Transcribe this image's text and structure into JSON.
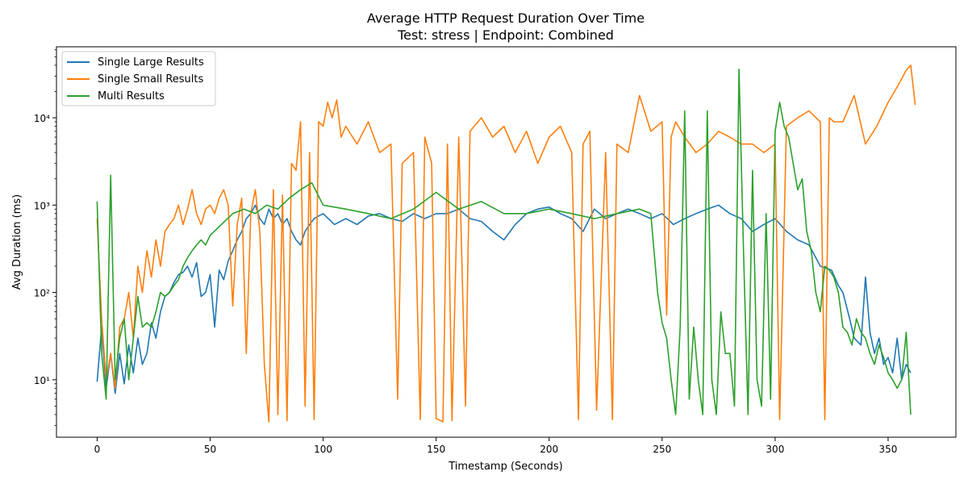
{
  "chart_data": {
    "type": "line",
    "title": "Average HTTP Request Duration Over Time",
    "subtitle": "Test: stress | Endpoint: Combined",
    "xlabel": "Timestamp (Seconds)",
    "ylabel": "Avg Duration (ms)",
    "xlim": [
      -18,
      380
    ],
    "ylim": [
      2.2,
      65000
    ],
    "yscale": "log",
    "grid": false,
    "legend_position": "top-left",
    "x_ticks": [
      0,
      50,
      100,
      150,
      200,
      250,
      300,
      350
    ],
    "x_tick_labels": [
      "0",
      "50",
      "100",
      "150",
      "200",
      "250",
      "300",
      "350"
    ],
    "y_ticks": [
      10,
      100,
      1000,
      10000
    ],
    "y_tick_labels": [
      "10¹",
      "10²",
      "10³",
      "10⁴"
    ],
    "series": [
      {
        "name": "Single Large Results",
        "color": "#1f77b4",
        "x": [
          0,
          2,
          4,
          6,
          8,
          10,
          12,
          14,
          16,
          18,
          20,
          22,
          24,
          26,
          28,
          30,
          32,
          34,
          36,
          38,
          40,
          42,
          44,
          46,
          48,
          50,
          52,
          54,
          56,
          58,
          60,
          62,
          64,
          66,
          68,
          70,
          72,
          74,
          76,
          78,
          80,
          82,
          84,
          86,
          88,
          90,
          92,
          94,
          96,
          98,
          100,
          105,
          110,
          115,
          120,
          125,
          130,
          135,
          140,
          145,
          150,
          155,
          160,
          165,
          170,
          175,
          180,
          185,
          190,
          195,
          200,
          205,
          210,
          215,
          220,
          225,
          230,
          235,
          240,
          245,
          250,
          255,
          260,
          265,
          270,
          275,
          280,
          285,
          290,
          295,
          300,
          305,
          310,
          315,
          320,
          325,
          328,
          330,
          333,
          335,
          338,
          340,
          342,
          344,
          346,
          348,
          350,
          352,
          354,
          356,
          358,
          360
        ],
        "values": [
          9.5,
          40,
          8,
          20,
          7,
          20,
          9,
          25,
          12,
          30,
          15,
          20,
          45,
          30,
          60,
          90,
          100,
          130,
          160,
          170,
          200,
          150,
          220,
          90,
          100,
          160,
          40,
          180,
          140,
          230,
          300,
          400,
          500,
          700,
          800,
          1000,
          700,
          600,
          900,
          700,
          800,
          600,
          700,
          500,
          400,
          350,
          500,
          600,
          700,
          750,
          800,
          600,
          700,
          600,
          750,
          800,
          700,
          650,
          800,
          700,
          800,
          800,
          900,
          700,
          650,
          500,
          400,
          600,
          800,
          900,
          950,
          800,
          700,
          500,
          900,
          700,
          800,
          900,
          800,
          700,
          800,
          600,
          700,
          800,
          900,
          1000,
          800,
          700,
          500,
          600,
          700,
          500,
          400,
          350,
          200,
          180,
          120,
          100,
          50,
          30,
          25,
          150,
          35,
          20,
          30,
          15,
          18,
          12,
          30,
          10,
          15,
          12
        ]
      },
      {
        "name": "Single Small Results",
        "color": "#ff7f0e",
        "x": [
          0,
          2,
          4,
          6,
          8,
          10,
          12,
          14,
          16,
          18,
          20,
          22,
          24,
          26,
          28,
          30,
          32,
          34,
          36,
          38,
          40,
          42,
          44,
          46,
          48,
          50,
          52,
          54,
          56,
          58,
          60,
          62,
          64,
          66,
          68,
          70,
          72,
          74,
          76,
          78,
          80,
          82,
          84,
          86,
          88,
          90,
          92,
          94,
          96,
          98,
          100,
          102,
          104,
          106,
          108,
          110,
          115,
          120,
          125,
          130,
          133,
          135,
          140,
          143,
          145,
          148,
          150,
          153,
          155,
          157,
          160,
          163,
          165,
          170,
          175,
          180,
          185,
          190,
          195,
          200,
          205,
          210,
          213,
          215,
          218,
          221,
          225,
          228,
          230,
          235,
          240,
          245,
          250,
          252,
          254,
          256,
          260,
          265,
          270,
          275,
          280,
          285,
          290,
          295,
          300,
          302,
          305,
          310,
          315,
          320,
          322,
          324,
          326,
          330,
          335,
          340,
          345,
          350,
          355,
          358,
          360,
          362
        ],
        "values": [
          700,
          50,
          10,
          20,
          8,
          40,
          50,
          100,
          30,
          200,
          100,
          300,
          150,
          400,
          200,
          500,
          600,
          700,
          1000,
          600,
          900,
          1500,
          800,
          600,
          900,
          1000,
          800,
          1200,
          1500,
          1000,
          70,
          600,
          1200,
          20,
          800,
          1500,
          500,
          15,
          3.3,
          1500,
          4,
          1300,
          3.4,
          3000,
          2500,
          9000,
          5,
          4000,
          3.5,
          9000,
          8000,
          15000,
          10000,
          16000,
          6000,
          8000,
          5000,
          9000,
          4000,
          5000,
          6,
          3000,
          4000,
          3.5,
          6000,
          3000,
          3.6,
          3.3,
          5000,
          3.4,
          6000,
          5,
          7000,
          10000,
          6000,
          8000,
          4000,
          7000,
          3000,
          6000,
          8000,
          4000,
          3.5,
          5000,
          7000,
          4.5,
          4000,
          3.5,
          5000,
          4000,
          18000,
          7000,
          9000,
          55,
          6000,
          9000,
          6000,
          4000,
          5000,
          7000,
          6000,
          5000,
          5000,
          4000,
          5000,
          3.5,
          8000,
          10000,
          12000,
          9000,
          3.5,
          10000,
          9000,
          9000,
          18000,
          5000,
          8000,
          15000,
          25000,
          35000,
          40000,
          14000
        ]
      },
      {
        "name": "Multi Results",
        "color": "#2ca02c",
        "x": [
          0,
          2,
          4,
          6,
          8,
          10,
          12,
          14,
          16,
          18,
          20,
          22,
          24,
          26,
          28,
          30,
          32,
          34,
          36,
          38,
          40,
          42,
          44,
          46,
          48,
          50,
          55,
          60,
          65,
          70,
          75,
          80,
          85,
          90,
          95,
          100,
          110,
          120,
          130,
          140,
          150,
          160,
          170,
          180,
          190,
          200,
          210,
          220,
          230,
          240,
          245,
          248,
          250,
          252,
          254,
          256,
          258,
          260,
          262,
          264,
          266,
          268,
          270,
          272,
          274,
          276,
          278,
          280,
          282,
          284,
          286,
          288,
          290,
          292,
          294,
          296,
          298,
          300,
          302,
          304,
          306,
          308,
          310,
          312,
          314,
          316,
          318,
          320,
          322,
          324,
          326,
          328,
          330,
          332,
          334,
          336,
          338,
          340,
          342,
          344,
          346,
          348,
          350,
          352,
          354,
          356,
          358,
          360
        ],
        "values": [
          1100,
          20,
          6,
          2200,
          10,
          30,
          50,
          10,
          30,
          90,
          40,
          45,
          40,
          60,
          100,
          90,
          100,
          120,
          140,
          200,
          250,
          300,
          350,
          400,
          350,
          450,
          600,
          800,
          900,
          800,
          1000,
          900,
          1200,
          1500,
          1800,
          1000,
          900,
          800,
          700,
          900,
          1400,
          900,
          1100,
          800,
          800,
          900,
          800,
          700,
          800,
          900,
          800,
          100,
          45,
          30,
          10,
          4,
          40,
          12000,
          6,
          40,
          10,
          4,
          12000,
          10,
          4,
          60,
          20,
          20,
          5,
          36000,
          300,
          4,
          2500,
          10,
          5,
          800,
          6,
          7000,
          15000,
          8000,
          6000,
          3000,
          1500,
          2000,
          500,
          300,
          100,
          60,
          200,
          180,
          150,
          100,
          40,
          35,
          25,
          50,
          35,
          30,
          20,
          15,
          25,
          18,
          12,
          10,
          8,
          10,
          35,
          4
        ]
      }
    ]
  }
}
